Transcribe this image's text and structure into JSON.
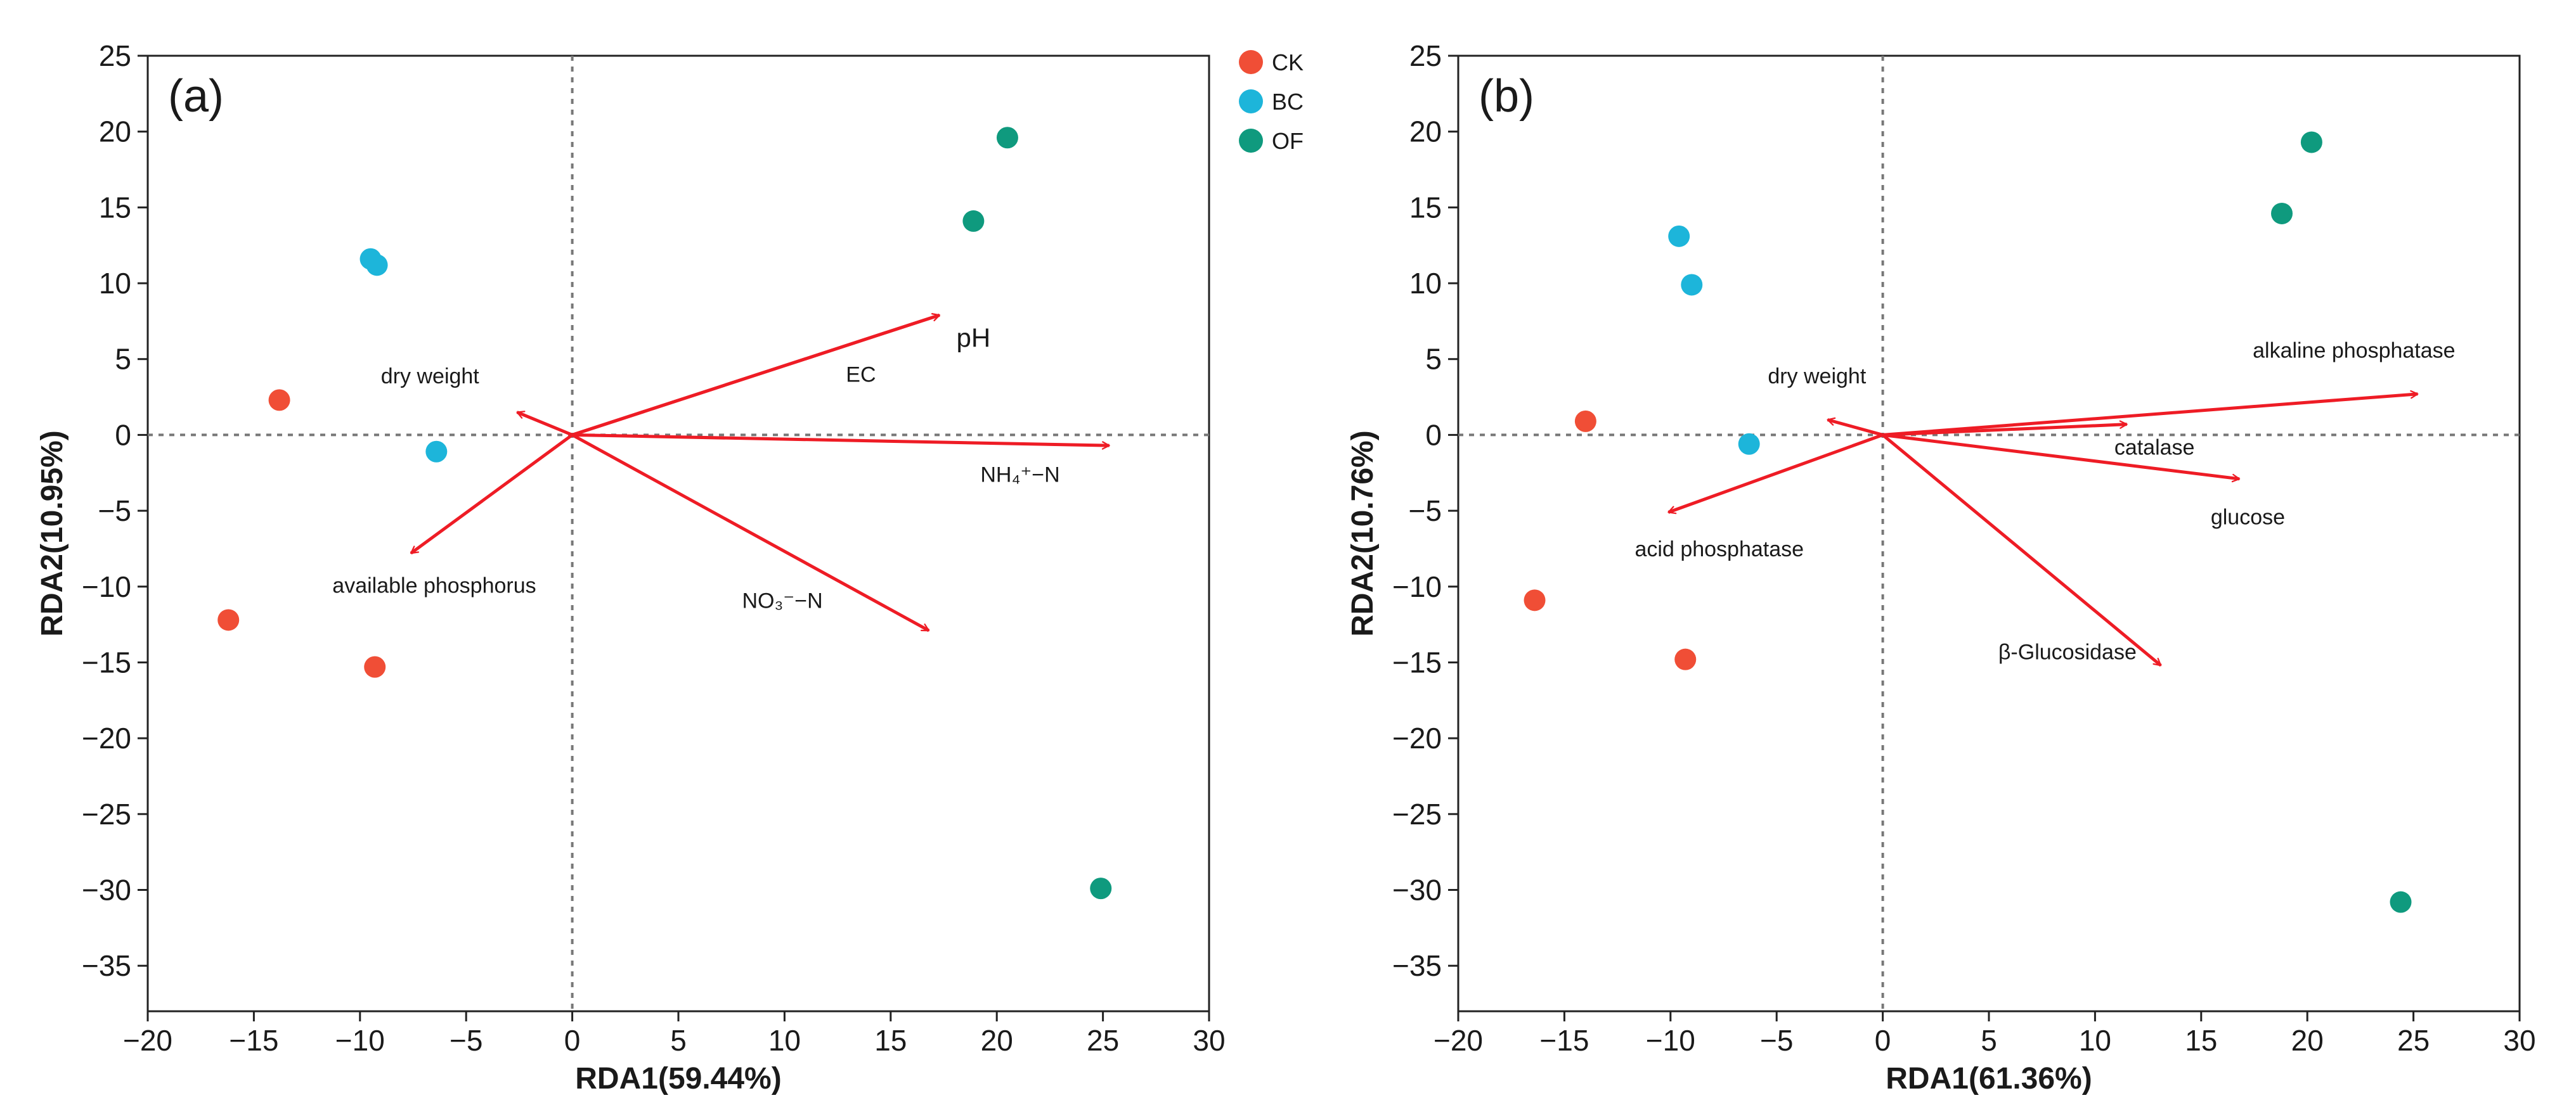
{
  "legend": [
    {
      "label": "CK",
      "color": "#F04E36"
    },
    {
      "label": "BC",
      "color": "#1DB5DA"
    },
    {
      "label": "OF",
      "color": "#0F9A7E"
    }
  ],
  "arrow_color": "#EE1C25",
  "chart_data": [
    {
      "type": "scatter",
      "subtype": "rda-biplot",
      "panel_label": "(a)",
      "xlabel": "RDA1(59.44%)",
      "ylabel": "RDA2(10.95%)",
      "xlim": [
        -20,
        30
      ],
      "ylim": [
        -38,
        25
      ],
      "xticks": [
        -20,
        -15,
        -10,
        -5,
        0,
        5,
        10,
        15,
        20,
        25,
        30
      ],
      "yticks": [
        -35,
        -30,
        -25,
        -20,
        -15,
        -10,
        -5,
        0,
        5,
        10,
        15,
        20,
        25
      ],
      "points": [
        {
          "group": "CK",
          "x": -13.8,
          "y": 2.3
        },
        {
          "group": "CK",
          "x": -16.2,
          "y": -12.2
        },
        {
          "group": "CK",
          "x": -9.3,
          "y": -15.3
        },
        {
          "group": "BC",
          "x": -9.5,
          "y": 11.6
        },
        {
          "group": "BC",
          "x": -9.2,
          "y": 11.2
        },
        {
          "group": "BC",
          "x": -6.4,
          "y": -1.1
        },
        {
          "group": "OF",
          "x": 20.5,
          "y": 19.6
        },
        {
          "group": "OF",
          "x": 18.9,
          "y": 14.1
        },
        {
          "group": "OF",
          "x": 24.9,
          "y": -29.9
        }
      ],
      "arrows": [
        {
          "label": "dry weight",
          "x": -2.6,
          "y": 1.5,
          "label_x": -6.7,
          "label_y": 3.9
        },
        {
          "label": "available phosphorus",
          "x": -7.6,
          "y": -7.8,
          "label_x": -6.5,
          "label_y": -9.9
        },
        {
          "label": "EC",
          "x": 17.3,
          "y": 7.9,
          "label_x": 13.6,
          "label_y": 4.0
        },
        {
          "label": "pH",
          "x": 17.3,
          "y": 7.9,
          "label_x": 18.9,
          "label_y": 6.3,
          "large": true
        },
        {
          "label": "NH₄⁺−N",
          "x": 25.3,
          "y": -0.7,
          "label_x": 21.1,
          "label_y": -2.6
        },
        {
          "label": "NO₃⁻−N",
          "x": 16.8,
          "y": -12.9,
          "label_x": 9.9,
          "label_y": -10.9
        }
      ]
    },
    {
      "type": "scatter",
      "subtype": "rda-biplot",
      "panel_label": "(b)",
      "xlabel": "RDA1(61.36%)",
      "ylabel": "RDA2(10.76%)",
      "xlim": [
        -20,
        30
      ],
      "ylim": [
        -38,
        25
      ],
      "xticks": [
        -20,
        -15,
        -10,
        -5,
        0,
        5,
        10,
        15,
        20,
        25,
        30
      ],
      "yticks": [
        -35,
        -30,
        -25,
        -20,
        -15,
        -10,
        -5,
        0,
        5,
        10,
        15,
        20,
        25
      ],
      "points": [
        {
          "group": "CK",
          "x": -14.0,
          "y": 0.9
        },
        {
          "group": "CK",
          "x": -16.4,
          "y": -10.9
        },
        {
          "group": "CK",
          "x": -9.3,
          "y": -14.8
        },
        {
          "group": "BC",
          "x": -9.6,
          "y": 13.1
        },
        {
          "group": "BC",
          "x": -9.0,
          "y": 9.9
        },
        {
          "group": "BC",
          "x": -6.3,
          "y": -0.6
        },
        {
          "group": "OF",
          "x": 20.2,
          "y": 19.3
        },
        {
          "group": "OF",
          "x": 18.8,
          "y": 14.6
        },
        {
          "group": "OF",
          "x": 24.4,
          "y": -30.8
        }
      ],
      "arrows": [
        {
          "label": "dry weight",
          "x": -2.6,
          "y": 1.0,
          "label_x": -3.1,
          "label_y": 3.9
        },
        {
          "label": "acid phosphatase",
          "x": -10.1,
          "y": -5.1,
          "label_x": -7.7,
          "label_y": -7.5
        },
        {
          "label": "alkaline phosphatase",
          "x": 25.2,
          "y": 2.7,
          "label_x": 22.2,
          "label_y": 5.6
        },
        {
          "label": "catalase",
          "x": 11.5,
          "y": 0.7,
          "label_x": 12.8,
          "label_y": -0.8
        },
        {
          "label": "glucose",
          "x": 16.8,
          "y": -2.9,
          "label_x": 17.2,
          "label_y": -5.4
        },
        {
          "label": "β-Glucosidase",
          "x": 13.1,
          "y": -15.2,
          "label_x": 8.7,
          "label_y": -14.3
        }
      ]
    }
  ]
}
